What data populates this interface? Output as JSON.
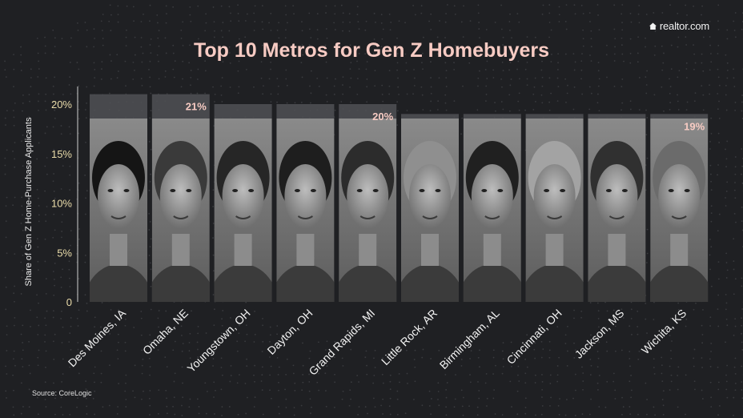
{
  "brand": {
    "logo_text": "realtor.com",
    "logo_icon": "house-icon"
  },
  "title": "Top 10 Metros for Gen Z Homebuyers",
  "source": "Source: CoreLogic",
  "colors": {
    "background": "#1f2023",
    "title": "#f7cbc3",
    "tick_label": "#eadcaa",
    "value_label": "#f7cbc3",
    "bar_top": "#505155",
    "photo_bw": "#7a7a7a"
  },
  "chart_data": {
    "type": "bar",
    "title": "Top 10 Metros for Gen Z Homebuyers",
    "xlabel": "",
    "ylabel": "Share of Gen Z Home-Purchase Applicants",
    "ylim": [
      0,
      20
    ],
    "yticks": [
      "0",
      "5%",
      "10%",
      "15%",
      "20%"
    ],
    "ytick_values": [
      0,
      5,
      10,
      15,
      20
    ],
    "grid": false,
    "categories": [
      "Des Moines, IA",
      "Omaha, NE",
      "Youngstown, OH",
      "Dayton, OH",
      "Grand Rapids, MI",
      "Little Rock, AR",
      "Birmingham, AL",
      "Cincinnati, OH",
      "Jackson, MS",
      "Wichita, KS"
    ],
    "values": [
      21,
      21,
      20,
      20,
      20,
      19,
      19,
      19,
      19,
      19
    ],
    "data_labels": [
      {
        "index": 1,
        "text": "21%"
      },
      {
        "index": 4,
        "text": "20%"
      },
      {
        "index": 9,
        "text": "19%"
      }
    ]
  }
}
